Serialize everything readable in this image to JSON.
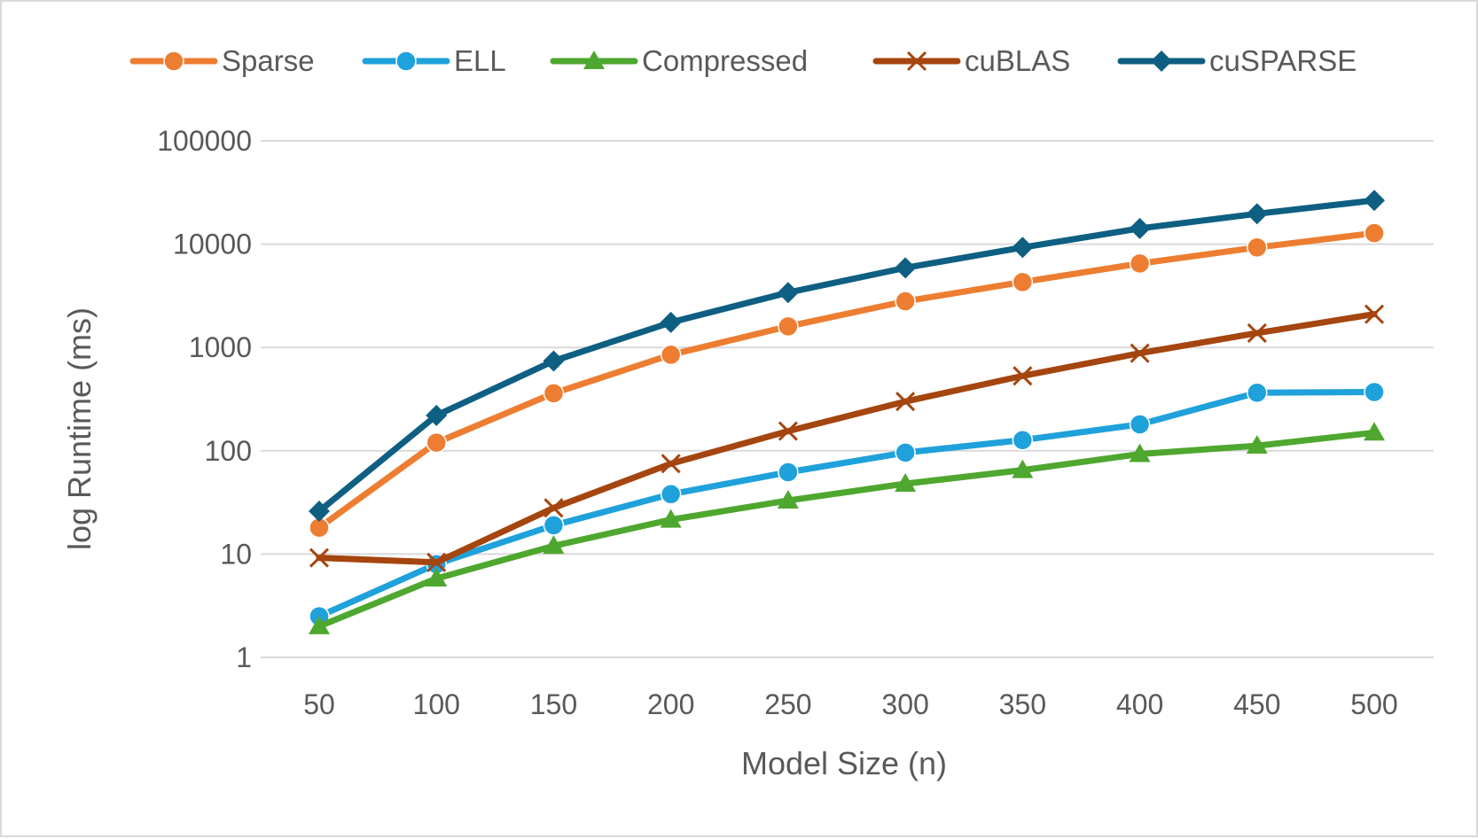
{
  "chart_data": {
    "type": "line",
    "title": "",
    "xlabel": "Model Size (n)",
    "ylabel": "log Runtime (ms)",
    "yscale": "log",
    "ylim": [
      1,
      100000
    ],
    "yticks": [
      "1",
      "10",
      "100",
      "1000",
      "10000",
      "100000"
    ],
    "grid": true,
    "legend_position": "top",
    "categories": [
      "50",
      "100",
      "150",
      "200",
      "250",
      "300",
      "350",
      "400",
      "450",
      "500"
    ],
    "series": [
      {
        "name": "Sparse",
        "color": "#ed7d31",
        "marker": "circle",
        "values": [
          18,
          120,
          360,
          850,
          1600,
          2800,
          4300,
          6500,
          9300,
          12800
        ]
      },
      {
        "name": "ELL",
        "color": "#1fa1db",
        "marker": "circle",
        "values": [
          2.5,
          8,
          19,
          38,
          62,
          96,
          127,
          180,
          365,
          370
        ]
      },
      {
        "name": "Compressed",
        "color": "#4ea72e",
        "marker": "triangle",
        "values": [
          2,
          5.8,
          12,
          21.5,
          33,
          48,
          65,
          93,
          112,
          150
        ]
      },
      {
        "name": "cuBLAS",
        "color": "#a5450f",
        "marker": "x",
        "values": [
          9.2,
          8.3,
          28,
          75,
          155,
          300,
          530,
          880,
          1380,
          2100
        ]
      },
      {
        "name": "cuSPARSE",
        "color": "#0e5f82",
        "marker": "diamond",
        "values": [
          26,
          220,
          740,
          1750,
          3400,
          5900,
          9300,
          14200,
          19700,
          26500
        ]
      }
    ]
  }
}
